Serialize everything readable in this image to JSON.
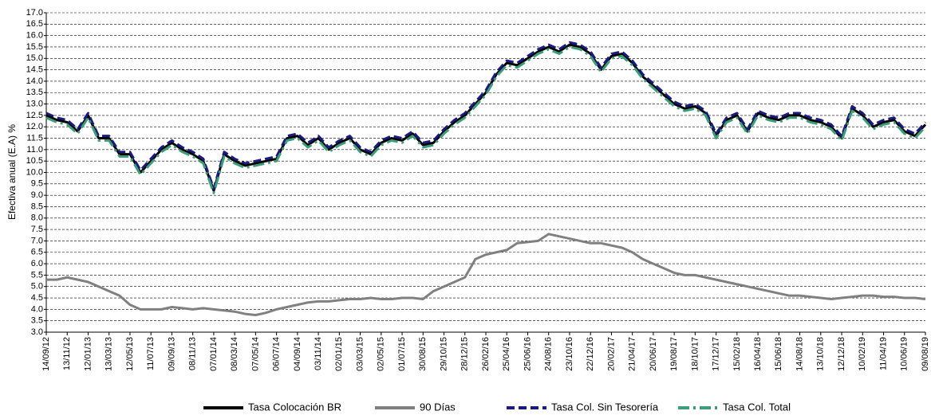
{
  "chart_data": {
    "type": "line",
    "y_label": "Efectiva anual (E.A) %",
    "categories": [
      "14/09/12",
      null,
      "13/11/12",
      null,
      "12/01/13",
      null,
      "13/03/13",
      null,
      "12/05/13",
      null,
      "11/07/13",
      null,
      "09/09/13",
      null,
      "08/11/13",
      null,
      "07/01/14",
      null,
      "08/03/14",
      null,
      "07/05/14",
      null,
      "06/07/14",
      null,
      "04/09/14",
      null,
      "03/11/14",
      null,
      "02/01/15",
      null,
      "03/03/15",
      null,
      "02/05/15",
      null,
      "01/07/15",
      null,
      "30/08/15",
      null,
      "29/10/15",
      null,
      "28/12/15",
      null,
      "26/02/16",
      null,
      "25/04/16",
      null,
      "25/06/16",
      null,
      "24/08/16",
      null,
      "23/10/16",
      null,
      "22/12/16",
      null,
      "20/02/17",
      null,
      "21/04/17",
      null,
      "20/06/17",
      null,
      "19/08/17",
      null,
      "18/10/17",
      null,
      "17/12/17",
      null,
      "15/02/18",
      null,
      "16/04/18",
      null,
      "15/06/18",
      null,
      "14/08/18",
      null,
      "13/10/18",
      null,
      "12/12/18",
      null,
      "10/02/19",
      null,
      "11/04/19",
      null,
      "10/06/19",
      null,
      "09/08/19"
    ],
    "series": [
      {
        "name": "Tasa Colocación BR",
        "color": "#000000",
        "style": "solid",
        "values": [
          12.5,
          12.3,
          12.2,
          11.8,
          12.5,
          11.5,
          11.5,
          10.8,
          10.8,
          10.0,
          10.5,
          11.0,
          11.3,
          11.0,
          10.8,
          10.5,
          9.2,
          10.8,
          10.5,
          10.3,
          10.4,
          10.5,
          10.6,
          11.5,
          11.6,
          11.2,
          11.5,
          11.0,
          11.3,
          11.5,
          11.0,
          10.8,
          11.3,
          11.5,
          11.4,
          11.7,
          11.2,
          11.3,
          11.8,
          12.2,
          12.5,
          13.0,
          13.5,
          14.3,
          14.8,
          14.7,
          15.0,
          15.3,
          15.5,
          15.3,
          15.6,
          15.5,
          15.2,
          14.5,
          15.1,
          15.2,
          14.8,
          14.2,
          13.8,
          13.4,
          13.0,
          12.8,
          12.9,
          12.6,
          11.6,
          12.3,
          12.5,
          11.8,
          12.6,
          12.4,
          12.3,
          12.5,
          12.5,
          12.3,
          12.2,
          12.0,
          11.5,
          12.8,
          12.5,
          12.0,
          12.2,
          12.3,
          11.8,
          11.6,
          12.1
        ]
      },
      {
        "name": "90 Días",
        "color": "#808080",
        "style": "solid",
        "values": [
          5.3,
          5.3,
          5.4,
          5.3,
          5.2,
          5.0,
          4.8,
          4.6,
          4.2,
          4.0,
          4.0,
          4.0,
          4.1,
          4.05,
          4.0,
          4.05,
          4.0,
          3.95,
          3.9,
          3.8,
          3.75,
          3.85,
          4.0,
          4.1,
          4.2,
          4.3,
          4.35,
          4.35,
          4.4,
          4.45,
          4.45,
          4.5,
          4.45,
          4.45,
          4.5,
          4.5,
          4.45,
          4.8,
          5.0,
          5.2,
          5.4,
          6.2,
          6.4,
          6.5,
          6.6,
          6.9,
          6.95,
          7.0,
          7.3,
          7.2,
          7.1,
          7.0,
          6.9,
          6.9,
          6.8,
          6.7,
          6.5,
          6.2,
          6.0,
          5.8,
          5.6,
          5.5,
          5.5,
          5.4,
          5.3,
          5.2,
          5.1,
          5.0,
          4.9,
          4.8,
          4.7,
          4.6,
          4.6,
          4.55,
          4.5,
          4.45,
          4.5,
          4.55,
          4.6,
          4.6,
          4.55,
          4.55,
          4.5,
          4.5,
          4.45
        ]
      },
      {
        "name": "Tasa Col. Sin Tesorería",
        "color": "#1a1a80",
        "style": "dashed",
        "values": [
          12.6,
          12.4,
          12.3,
          11.9,
          12.6,
          11.6,
          11.6,
          10.9,
          10.9,
          10.1,
          10.6,
          11.1,
          11.4,
          11.1,
          10.9,
          10.6,
          9.3,
          10.9,
          10.6,
          10.4,
          10.5,
          10.6,
          10.7,
          11.6,
          11.7,
          11.3,
          11.6,
          11.1,
          11.4,
          11.6,
          11.1,
          10.9,
          11.4,
          11.6,
          11.5,
          11.8,
          11.3,
          11.4,
          11.9,
          12.3,
          12.6,
          13.1,
          13.6,
          14.4,
          14.9,
          14.8,
          15.1,
          15.4,
          15.6,
          15.4,
          15.7,
          15.6,
          15.3,
          14.6,
          15.2,
          15.3,
          14.9,
          14.3,
          13.9,
          13.5,
          13.1,
          12.9,
          13.0,
          12.7,
          11.7,
          12.4,
          12.6,
          11.9,
          12.7,
          12.5,
          12.4,
          12.6,
          12.6,
          12.4,
          12.3,
          12.1,
          11.6,
          12.9,
          12.6,
          12.1,
          12.3,
          12.4,
          11.9,
          11.7,
          12.2
        ]
      },
      {
        "name": "Tasa Col. Total",
        "color": "#3c9e78",
        "style": "dashdot",
        "values": [
          12.4,
          12.2,
          12.1,
          11.7,
          12.4,
          11.4,
          11.4,
          10.7,
          10.7,
          9.9,
          10.4,
          10.9,
          11.2,
          10.9,
          10.7,
          10.4,
          9.1,
          10.7,
          10.4,
          10.2,
          10.3,
          10.4,
          10.5,
          11.4,
          11.5,
          11.1,
          11.4,
          10.9,
          11.2,
          11.4,
          10.9,
          10.7,
          11.2,
          11.4,
          11.3,
          11.6,
          11.1,
          11.2,
          11.7,
          12.1,
          12.4,
          12.9,
          13.4,
          14.2,
          14.7,
          14.6,
          14.9,
          15.2,
          15.4,
          15.2,
          15.5,
          15.4,
          15.1,
          14.4,
          15.0,
          15.1,
          14.7,
          14.1,
          13.7,
          13.3,
          12.9,
          12.7,
          12.8,
          12.5,
          11.5,
          12.2,
          12.4,
          11.7,
          12.5,
          12.3,
          12.2,
          12.4,
          12.4,
          12.2,
          12.1,
          11.9,
          11.4,
          12.7,
          12.4,
          11.9,
          12.1,
          12.2,
          11.7,
          11.5,
          12.0
        ]
      }
    ],
    "ylim": [
      3,
      17
    ],
    "yticks": [
      {
        "value": 3,
        "label": "3.0"
      },
      3.5,
      {
        "value": 4,
        "label": "4.0"
      },
      4.5,
      {
        "value": 5,
        "label": "5.0"
      },
      5.5,
      {
        "value": 6,
        "label": "6.0"
      },
      6.5,
      {
        "value": 7,
        "label": "7.0"
      },
      7.5,
      {
        "value": 8,
        "label": "8.0"
      },
      8.5,
      {
        "value": 9,
        "label": "9.0"
      },
      9.5,
      {
        "value": 10,
        "label": "10.0"
      },
      10.5,
      {
        "value": 11,
        "label": "11.0"
      },
      11.5,
      {
        "value": 12,
        "label": "12.0"
      },
      12.5,
      {
        "value": 13,
        "label": "13.0"
      },
      13.5,
      {
        "value": 14,
        "label": "14.0"
      },
      14.5,
      {
        "value": 15,
        "label": "15.0"
      },
      15.5,
      {
        "value": 16,
        "label": "16.0"
      },
      16.5,
      {
        "value": 17,
        "label": "17.0"
      }
    ],
    "grid": true,
    "legend": "bottom"
  }
}
